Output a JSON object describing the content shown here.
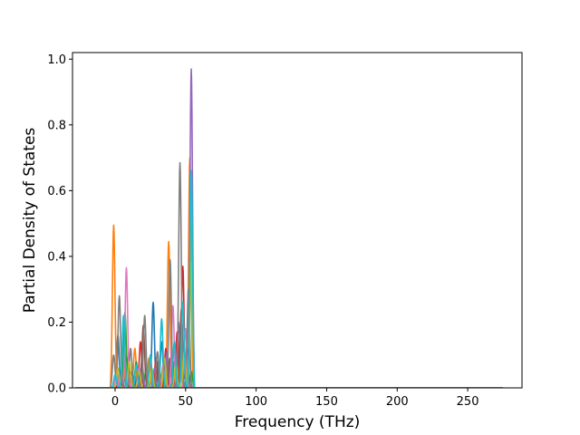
{
  "chart_data": {
    "type": "line",
    "title": "",
    "xlabel": "Frequency (THz)",
    "ylabel": "Partial Density of States",
    "xlim": [
      -30.2,
      288.5
    ],
    "ylim": [
      0.0,
      1.02
    ],
    "xticks": [
      0,
      50,
      100,
      150,
      200,
      250
    ],
    "xtick_labels": [
      "0",
      "50",
      "100",
      "150",
      "200",
      "250"
    ],
    "yticks": [
      0.0,
      0.2,
      0.4,
      0.6,
      0.8,
      1.0
    ],
    "ytick_labels": [
      "0.0",
      "0.2",
      "0.4",
      "0.6",
      "0.8",
      "1.0"
    ],
    "grid": false,
    "legend": "none",
    "x_extent": [
      -28.0,
      275.0
    ],
    "series": [
      {
        "color": "#1f77b4",
        "peaks": [
          [
            2,
            0.16
          ],
          [
            8,
            0.1
          ],
          [
            16,
            0.06
          ],
          [
            27,
            0.26
          ],
          [
            33,
            0.14
          ],
          [
            42,
            0.08
          ],
          [
            47,
            0.12
          ],
          [
            52,
            0.2
          ]
        ]
      },
      {
        "color": "#ff7f0e",
        "peaks": [
          [
            -1,
            0.495
          ],
          [
            6,
            0.07
          ],
          [
            14,
            0.12
          ],
          [
            24,
            0.09
          ],
          [
            38,
            0.445
          ],
          [
            46,
            0.16
          ],
          [
            53,
            0.7
          ]
        ]
      },
      {
        "color": "#2ca02c",
        "peaks": [
          [
            1,
            0.05
          ],
          [
            7,
            0.23
          ],
          [
            15,
            0.08
          ],
          [
            22,
            0.06
          ],
          [
            31,
            0.07
          ],
          [
            40,
            0.1
          ],
          [
            49,
            0.06
          ],
          [
            54,
            0.05
          ]
        ]
      },
      {
        "color": "#d62728",
        "peaks": [
          [
            3,
            0.04
          ],
          [
            10,
            0.07
          ],
          [
            18,
            0.14
          ],
          [
            29,
            0.09
          ],
          [
            36,
            0.12
          ],
          [
            44,
            0.17
          ],
          [
            48,
            0.37
          ]
        ]
      },
      {
        "color": "#9467bd",
        "peaks": [
          [
            2,
            0.06
          ],
          [
            9,
            0.05
          ],
          [
            19,
            0.08
          ],
          [
            28,
            0.06
          ],
          [
            37,
            0.11
          ],
          [
            45,
            0.2
          ],
          [
            54,
            0.97
          ]
        ]
      },
      {
        "color": "#8c564b",
        "peaks": [
          [
            4,
            0.03
          ],
          [
            12,
            0.05
          ],
          [
            20,
            0.19
          ],
          [
            30,
            0.08
          ],
          [
            39,
            0.09
          ],
          [
            47,
            0.24
          ],
          [
            51,
            0.12
          ]
        ]
      },
      {
        "color": "#e377c2",
        "peaks": [
          [
            1,
            0.05
          ],
          [
            8,
            0.365
          ],
          [
            17,
            0.06
          ],
          [
            25,
            0.09
          ],
          [
            34,
            0.07
          ],
          [
            41,
            0.25
          ],
          [
            50,
            0.18
          ]
        ]
      },
      {
        "color": "#7f7f7f",
        "peaks": [
          [
            -1,
            0.1
          ],
          [
            3,
            0.28
          ],
          [
            11,
            0.12
          ],
          [
            21,
            0.22
          ],
          [
            30,
            0.11
          ],
          [
            39,
            0.39
          ],
          [
            46,
            0.685
          ],
          [
            52,
            0.3
          ]
        ]
      },
      {
        "color": "#bcbd22",
        "peaks": [
          [
            2,
            0.06
          ],
          [
            10,
            0.08
          ],
          [
            17,
            0.05
          ],
          [
            26,
            0.06
          ],
          [
            35,
            0.09
          ],
          [
            43,
            0.07
          ],
          [
            49,
            0.11
          ],
          [
            54,
            0.38
          ]
        ]
      },
      {
        "color": "#17becf",
        "peaks": [
          [
            0,
            0.04
          ],
          [
            6,
            0.22
          ],
          [
            15,
            0.07
          ],
          [
            25,
            0.1
          ],
          [
            33,
            0.21
          ],
          [
            42,
            0.14
          ],
          [
            48,
            0.26
          ],
          [
            54,
            0.66
          ]
        ]
      }
    ]
  }
}
